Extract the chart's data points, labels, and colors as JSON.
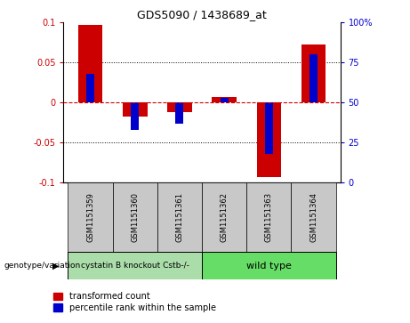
{
  "title": "GDS5090 / 1438689_at",
  "categories": [
    "GSM1151359",
    "GSM1151360",
    "GSM1151361",
    "GSM1151362",
    "GSM1151363",
    "GSM1151364"
  ],
  "red_values": [
    0.097,
    -0.018,
    -0.012,
    0.007,
    -0.093,
    0.073
  ],
  "blue_values_pct": [
    68,
    33,
    37,
    53,
    18,
    80
  ],
  "ylim": [
    -0.1,
    0.1
  ],
  "y2lim": [
    0,
    100
  ],
  "yticks": [
    -0.1,
    -0.05,
    0,
    0.05,
    0.1
  ],
  "y2ticks": [
    0,
    25,
    50,
    75,
    100
  ],
  "y2ticklabels": [
    "0",
    "25",
    "50",
    "75",
    "100%"
  ],
  "ytick_labels": [
    "-0.1",
    "-0.05",
    "0",
    "0.05",
    "0.1"
  ],
  "group1_label": "cystatin B knockout Cstb-/-",
  "group2_label": "wild type",
  "group1_indices": [
    0,
    1,
    2
  ],
  "group2_indices": [
    3,
    4,
    5
  ],
  "group1_color": "#aaddaa",
  "group2_color": "#66dd66",
  "bar_bg_color": "#c8c8c8",
  "genotype_label": "genotype/variation",
  "legend_red": "transformed count",
  "legend_blue": "percentile rank within the sample",
  "red_color": "#cc0000",
  "blue_color": "#0000cc",
  "zero_line_color": "#cc0000",
  "bar_width": 0.55,
  "blue_bar_width": 0.18
}
